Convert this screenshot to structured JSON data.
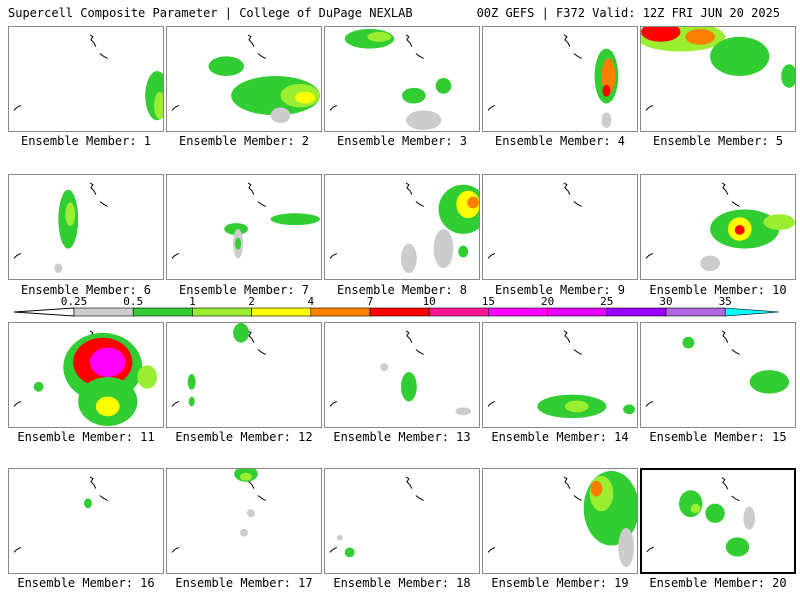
{
  "header": {
    "left_title": "Supercell Composite Parameter | College of DuPage NEXLAB",
    "right_title": "00Z GEFS | F372 Valid: 12Z FRI JUN 20 2025"
  },
  "caption_prefix": "Ensemble Member: ",
  "members": [
    {
      "number": "1",
      "blobs": [
        [
          150,
          70,
          12,
          25,
          "#32cd32"
        ],
        [
          153,
          80,
          6,
          14,
          "#9aed2f"
        ]
      ]
    },
    {
      "number": "2",
      "blobs": [
        [
          60,
          40,
          18,
          10,
          "#32cd32"
        ],
        [
          110,
          70,
          45,
          20,
          "#32cd32"
        ],
        [
          135,
          70,
          20,
          12,
          "#9aed2f"
        ],
        [
          140,
          72,
          10,
          6,
          "#ffff00"
        ],
        [
          115,
          90,
          10,
          8,
          "#cccccc"
        ]
      ]
    },
    {
      "number": "3",
      "blobs": [
        [
          45,
          12,
          25,
          10,
          "#32cd32"
        ],
        [
          55,
          10,
          12,
          5,
          "#9aed2f"
        ],
        [
          90,
          70,
          12,
          8,
          "#32cd32"
        ],
        [
          120,
          60,
          8,
          8,
          "#32cd32"
        ],
        [
          100,
          95,
          18,
          10,
          "#cccccc"
        ]
      ]
    },
    {
      "number": "4",
      "blobs": [
        [
          125,
          50,
          12,
          28,
          "#32cd32"
        ],
        [
          127,
          50,
          7,
          18,
          "#ff7f00"
        ],
        [
          125,
          65,
          4,
          6,
          "#ff0000"
        ],
        [
          125,
          95,
          5,
          8,
          "#cccccc"
        ]
      ]
    },
    {
      "number": "5",
      "blobs": [
        [
          40,
          10,
          45,
          15,
          "#9aed2f"
        ],
        [
          20,
          5,
          20,
          10,
          "#ff0000"
        ],
        [
          60,
          10,
          15,
          8,
          "#ff7f00"
        ],
        [
          100,
          30,
          30,
          20,
          "#32cd32"
        ],
        [
          150,
          50,
          8,
          12,
          "#32cd32"
        ]
      ]
    },
    {
      "number": "6",
      "blobs": [
        [
          60,
          45,
          10,
          30,
          "#32cd32"
        ],
        [
          62,
          40,
          5,
          12,
          "#9aed2f"
        ],
        [
          50,
          95,
          4,
          5,
          "#cccccc"
        ]
      ]
    },
    {
      "number": "7",
      "blobs": [
        [
          130,
          45,
          25,
          6,
          "#32cd32"
        ],
        [
          70,
          55,
          12,
          6,
          "#32cd32"
        ],
        [
          72,
          70,
          5,
          15,
          "#cccccc"
        ],
        [
          72,
          70,
          3,
          6,
          "#32cd32"
        ]
      ]
    },
    {
      "number": "8",
      "blobs": [
        [
          140,
          35,
          25,
          25,
          "#32cd32"
        ],
        [
          145,
          30,
          12,
          14,
          "#ffff00"
        ],
        [
          150,
          28,
          6,
          6,
          "#ff7f00"
        ],
        [
          120,
          75,
          10,
          20,
          "#cccccc"
        ],
        [
          85,
          85,
          8,
          15,
          "#cccccc"
        ],
        [
          140,
          78,
          5,
          6,
          "#32cd32"
        ]
      ]
    },
    {
      "number": "9",
      "blobs": []
    },
    {
      "number": "10",
      "blobs": [
        [
          105,
          55,
          35,
          20,
          "#32cd32"
        ],
        [
          100,
          55,
          12,
          12,
          "#ffff00"
        ],
        [
          100,
          56,
          5,
          5,
          "#ff0000"
        ],
        [
          140,
          48,
          16,
          8,
          "#9aed2f"
        ],
        [
          70,
          90,
          10,
          8,
          "#cccccc"
        ]
      ]
    },
    {
      "number": "11",
      "blobs": [
        [
          95,
          45,
          40,
          35,
          "#32cd32"
        ],
        [
          95,
          40,
          30,
          25,
          "#ff0000"
        ],
        [
          100,
          40,
          18,
          15,
          "#ff00ff"
        ],
        [
          100,
          80,
          30,
          25,
          "#32cd32"
        ],
        [
          100,
          85,
          12,
          10,
          "#ffff00"
        ],
        [
          30,
          65,
          5,
          5,
          "#32cd32"
        ],
        [
          140,
          55,
          10,
          12,
          "#9aed2f"
        ]
      ]
    },
    {
      "number": "12",
      "blobs": [
        [
          75,
          10,
          8,
          10,
          "#32cd32"
        ],
        [
          25,
          60,
          4,
          8,
          "#32cd32"
        ],
        [
          25,
          80,
          3,
          5,
          "#32cd32"
        ]
      ]
    },
    {
      "number": "13",
      "blobs": [
        [
          85,
          65,
          8,
          15,
          "#32cd32"
        ],
        [
          60,
          45,
          4,
          4,
          "#cccccc"
        ],
        [
          140,
          90,
          8,
          4,
          "#cccccc"
        ]
      ]
    },
    {
      "number": "14",
      "blobs": [
        [
          90,
          85,
          35,
          12,
          "#32cd32"
        ],
        [
          95,
          85,
          12,
          6,
          "#9aed2f"
        ],
        [
          148,
          88,
          6,
          5,
          "#32cd32"
        ]
      ]
    },
    {
      "number": "15",
      "blobs": [
        [
          130,
          60,
          20,
          12,
          "#32cd32"
        ],
        [
          48,
          20,
          6,
          6,
          "#32cd32"
        ]
      ]
    },
    {
      "number": "16",
      "blobs": [
        [
          80,
          35,
          4,
          5,
          "#32cd32"
        ]
      ]
    },
    {
      "number": "17",
      "blobs": [
        [
          80,
          5,
          12,
          8,
          "#32cd32"
        ],
        [
          80,
          8,
          6,
          4,
          "#9aed2f"
        ],
        [
          85,
          45,
          4,
          4,
          "#cccccc"
        ],
        [
          78,
          65,
          4,
          4,
          "#cccccc"
        ]
      ]
    },
    {
      "number": "18",
      "blobs": [
        [
          25,
          85,
          5,
          5,
          "#32cd32"
        ],
        [
          15,
          70,
          3,
          3,
          "#cccccc"
        ]
      ]
    },
    {
      "number": "19",
      "blobs": [
        [
          130,
          40,
          28,
          38,
          "#32cd32"
        ],
        [
          120,
          25,
          12,
          18,
          "#9aed2f"
        ],
        [
          115,
          20,
          6,
          8,
          "#ff7f00"
        ],
        [
          145,
          80,
          8,
          20,
          "#cccccc"
        ]
      ]
    },
    {
      "number": "20",
      "blobs": [
        [
          50,
          35,
          12,
          14,
          "#32cd32"
        ],
        [
          75,
          45,
          10,
          10,
          "#32cd32"
        ],
        [
          98,
          80,
          12,
          10,
          "#32cd32"
        ],
        [
          110,
          50,
          6,
          12,
          "#cccccc"
        ],
        [
          55,
          40,
          5,
          5,
          "#9aed2f"
        ]
      ]
    }
  ],
  "colorbar": {
    "labels": [
      "0.25",
      "0.5",
      "1",
      "2",
      "4",
      "7",
      "10",
      "15",
      "20",
      "25",
      "30",
      "35"
    ],
    "colors": [
      "#cccccc",
      "#32cd32",
      "#9aed2f",
      "#ffff00",
      "#ff7f00",
      "#ff0000",
      "#ff1493",
      "#ff00ff",
      "#e500ff",
      "#9900ff",
      "#b266e0",
      "#00ffff"
    ]
  }
}
